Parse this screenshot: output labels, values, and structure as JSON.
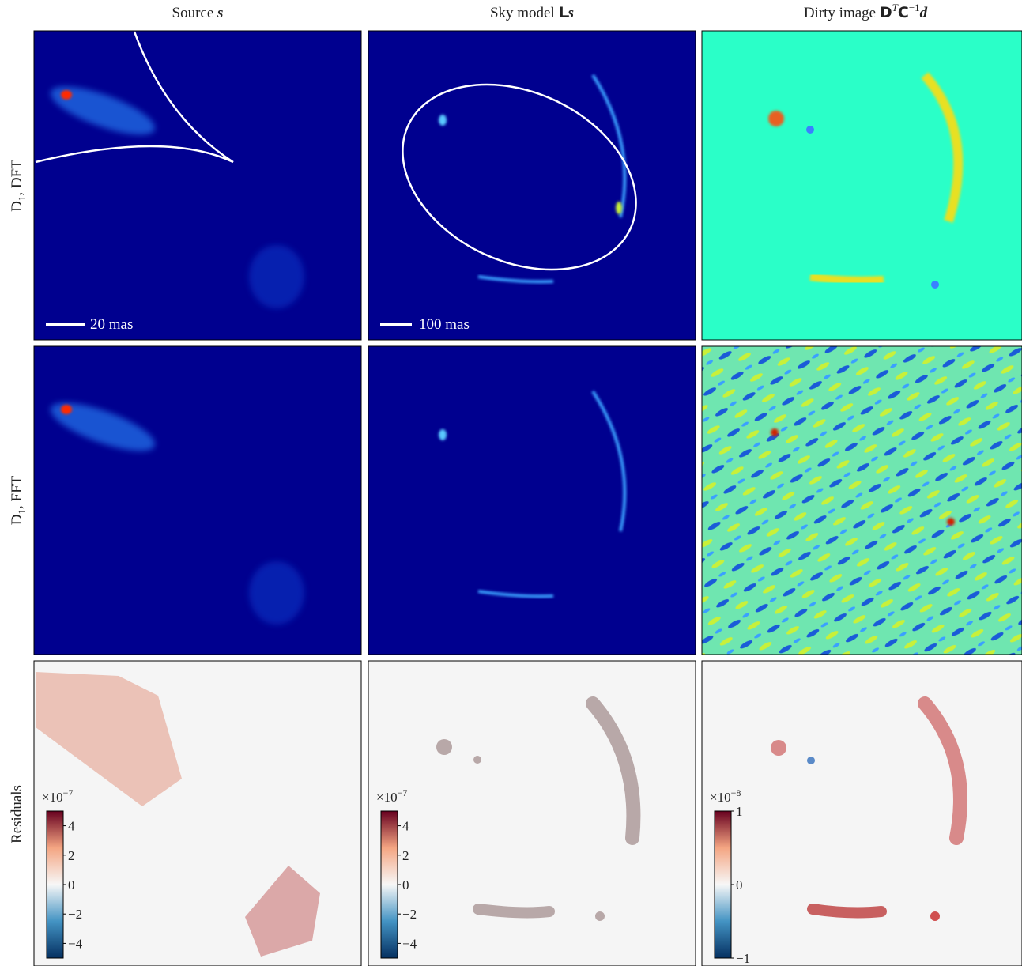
{
  "columns": [
    {
      "title": [
        "Source ",
        "s"
      ]
    },
    {
      "title": [
        "Sky model ",
        "L",
        "s"
      ]
    },
    {
      "title": [
        "Dirty image ",
        "D",
        "T",
        "C",
        "−1",
        "d"
      ]
    }
  ],
  "rows": [
    {
      "label": [
        "D",
        "1",
        ", DFT"
      ]
    },
    {
      "label": [
        "D",
        "1",
        ", FFT"
      ]
    },
    {
      "label": [
        "Residuals"
      ]
    }
  ],
  "scale_bars": [
    "20 mas",
    "100 mas"
  ],
  "colorbars": [
    {
      "exponent": [
        "×10",
        "−7"
      ],
      "lim": [
        -5,
        5
      ],
      "ticks": [
        {
          "value": 4,
          "label": "4"
        },
        2,
        0,
        {
          "value": -2,
          "label": "−2"
        },
        {
          "value": -4,
          "label": "−4"
        }
      ]
    },
    {
      "exponent": [
        "×10",
        "−7"
      ],
      "lim": [
        -5,
        5
      ],
      "ticks": [
        4,
        2,
        0,
        {
          "value": -2,
          "label": "−2"
        },
        {
          "value": -4,
          "label": "−4"
        }
      ]
    },
    {
      "exponent": [
        "×10",
        "−8"
      ],
      "lim": [
        -1,
        1
      ],
      "ticks": [
        1,
        0,
        {
          "value": -1,
          "label": "−1"
        }
      ]
    }
  ]
}
